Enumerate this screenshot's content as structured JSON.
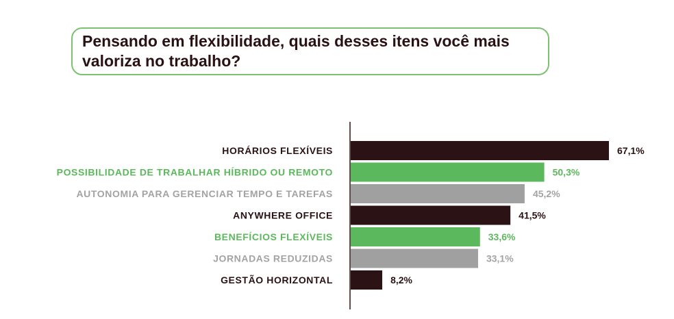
{
  "colors": {
    "dark": "#2b1214",
    "green": "#5cb85c",
    "gray": "#a0a0a0",
    "green_text": "#5cb85c",
    "gray_text": "#a3a3a3",
    "dark_text": "#2a1214",
    "axis": "#2b1214"
  },
  "chart_data": {
    "type": "bar",
    "orientation": "horizontal",
    "title": "Pensando em flexibilidade, quais desses itens você mais valoriza no trabalho?",
    "xlim": [
      0,
      67.1
    ],
    "grid": false,
    "bars": [
      {
        "category": "HORÁRIOS FLEXÍVEIS",
        "value": 67.1,
        "label": "67,1%",
        "color": "dark"
      },
      {
        "category": "POSSIBILIDADE DE TRABALHAR HÍBRIDO OU REMOTO",
        "value": 50.3,
        "label": "50,3%",
        "color": "green"
      },
      {
        "category": "AUTONOMIA PARA GERENCIAR TEMPO E TAREFAS",
        "value": 45.2,
        "label": "45,2%",
        "color": "gray"
      },
      {
        "category": "ANYWHERE OFFICE",
        "value": 41.5,
        "label": "41,5%",
        "color": "dark"
      },
      {
        "category": "BENEFÍCIOS FLEXÍVEIS",
        "value": 33.6,
        "label": "33,6%",
        "color": "green"
      },
      {
        "category": "JORNADAS REDUZIDAS",
        "value": 33.1,
        "label": "33,1%",
        "color": "gray"
      },
      {
        "category": "GESTÃO HORIZONTAL",
        "value": 8.2,
        "label": "8,2%",
        "color": "dark"
      }
    ]
  }
}
